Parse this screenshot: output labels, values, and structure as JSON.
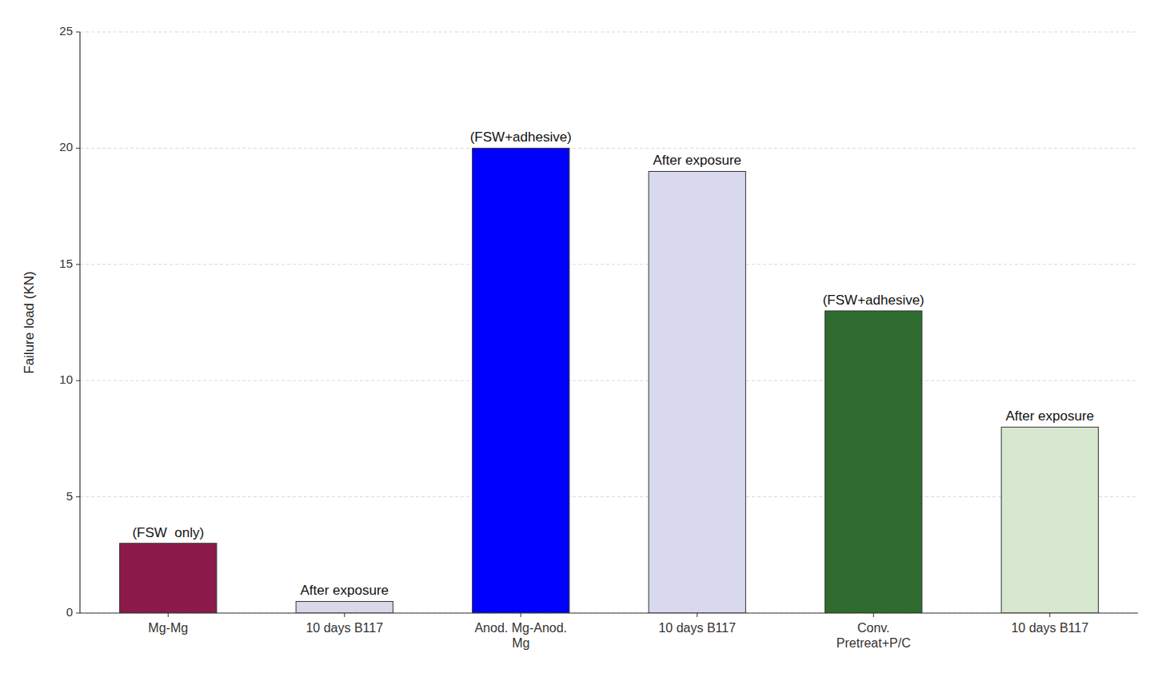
{
  "chart_data": {
    "type": "bar",
    "categories": [
      "Mg-Mg",
      "10 days B117",
      "Anod. Mg-Anod.\nMg",
      "10 days B117",
      "Conv.\nPretreat+P/C",
      "10 days B117"
    ],
    "values": [
      3.0,
      0.5,
      20.0,
      19.0,
      13.0,
      8.0
    ],
    "colors": [
      "#8B1A4A",
      "#D8D8E8",
      "#0000FF",
      "#D8D8EE",
      "#2E6B2E",
      "#D8E8D0"
    ],
    "annotations": [
      "(FSW  only)",
      "After exposure",
      "(FSW+adhesive)",
      "After exposure",
      "(FSW+adhesive)",
      "After exposure"
    ],
    "ylabel": "Failure load (KN)",
    "ylim": [
      0,
      25
    ],
    "yticks": [
      0,
      5,
      10,
      15,
      20,
      25
    ],
    "grid": true
  }
}
